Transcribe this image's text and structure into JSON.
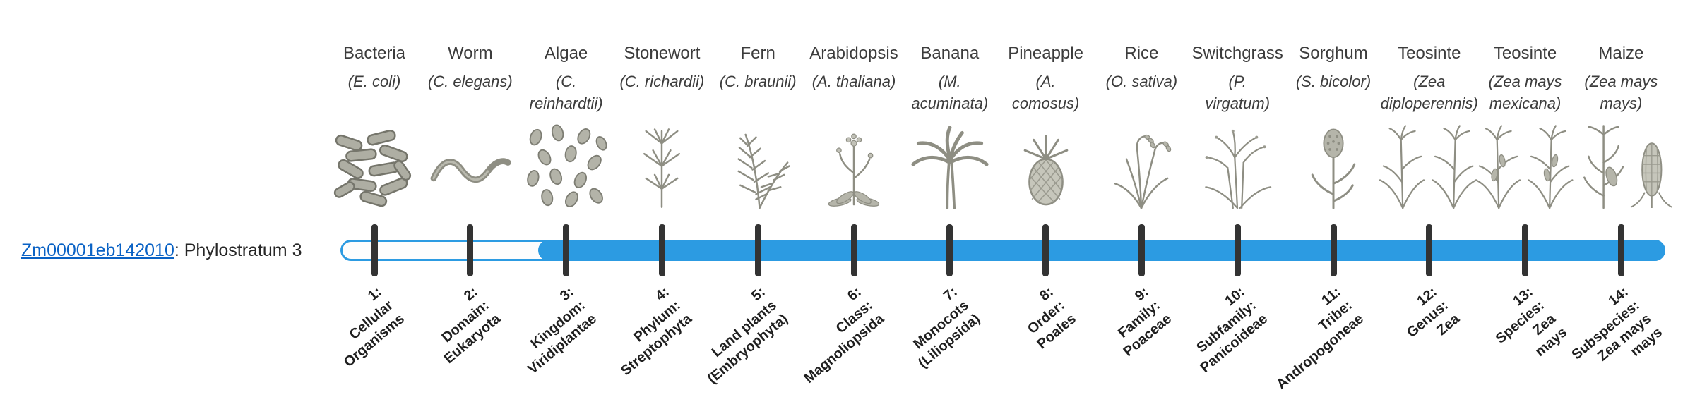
{
  "gene": {
    "id": "Zm00001eb142010",
    "suffix": ": Phylostratum 3"
  },
  "timeline": {
    "bar_color": "#2c9be2",
    "tick_color": "#333333",
    "filled_from_stratum": 3,
    "total_strata": 14
  },
  "strata": [
    {
      "index": 1,
      "common_name": "Bacteria",
      "scientific_name": "(E. coli)",
      "stratum_label": "1:\nCellular\nOrganisms",
      "icon": "bacteria-icon"
    },
    {
      "index": 2,
      "common_name": "Worm",
      "scientific_name": "(C. elegans)",
      "stratum_label": "2:\nDomain:\nEukaryota",
      "icon": "worm-icon"
    },
    {
      "index": 3,
      "common_name": "Algae",
      "scientific_name": "(C.\nreinhardtii)",
      "stratum_label": "3:\nKingdom:\nViridiplantae",
      "icon": "algae-icon"
    },
    {
      "index": 4,
      "common_name": "Stonewort",
      "scientific_name": "(C. richardii)",
      "stratum_label": "4:\nPhylum:\nStreptophyta",
      "icon": "stonewort-icon"
    },
    {
      "index": 5,
      "common_name": "Fern",
      "scientific_name": "(C. braunii)",
      "stratum_label": "5:\nLand plants\n(Embryophyta)",
      "icon": "fern-icon"
    },
    {
      "index": 6,
      "common_name": "Arabidopsis",
      "scientific_name": "(A. thaliana)",
      "stratum_label": "6:\nClass:\nMagnoliopsida",
      "icon": "arabidopsis-icon"
    },
    {
      "index": 7,
      "common_name": "Banana",
      "scientific_name": "(M.\nacuminata)",
      "stratum_label": "7:\nMonocots\n(Liliopsida)",
      "icon": "banana-icon"
    },
    {
      "index": 8,
      "common_name": "Pineapple",
      "scientific_name": "(A.\ncomosus)",
      "stratum_label": "8:\nOrder:\nPoales",
      "icon": "pineapple-icon"
    },
    {
      "index": 9,
      "common_name": "Rice",
      "scientific_name": "(O. sativa)",
      "stratum_label": "9:\nFamily:\nPoaceae",
      "icon": "rice-icon"
    },
    {
      "index": 10,
      "common_name": "Switchgrass",
      "scientific_name": "(P.\nvirgatum)",
      "stratum_label": "10:\nSubfamily:\nPanicoideae",
      "icon": "switchgrass-icon"
    },
    {
      "index": 11,
      "common_name": "Sorghum",
      "scientific_name": "(S. bicolor)",
      "stratum_label": "11:\nTribe:\nAndropogoneae",
      "icon": "sorghum-icon"
    },
    {
      "index": 12,
      "common_name": "Teosinte",
      "scientific_name": "(Zea\ndiploperennis)",
      "stratum_label": "12:\nGenus:\nZea",
      "icon": "teosinte-diploperennis-icon"
    },
    {
      "index": 13,
      "common_name": "Teosinte",
      "scientific_name": "(Zea mays\nmexicana)",
      "stratum_label": "13:\nSpecies:\nZea\nmays",
      "icon": "teosinte-mexicana-icon"
    },
    {
      "index": 14,
      "common_name": "Maize",
      "scientific_name": "(Zea mays\nmays)",
      "stratum_label": "14:\nSubspecies:\nZea mays\nmays",
      "icon": "maize-icon"
    }
  ]
}
